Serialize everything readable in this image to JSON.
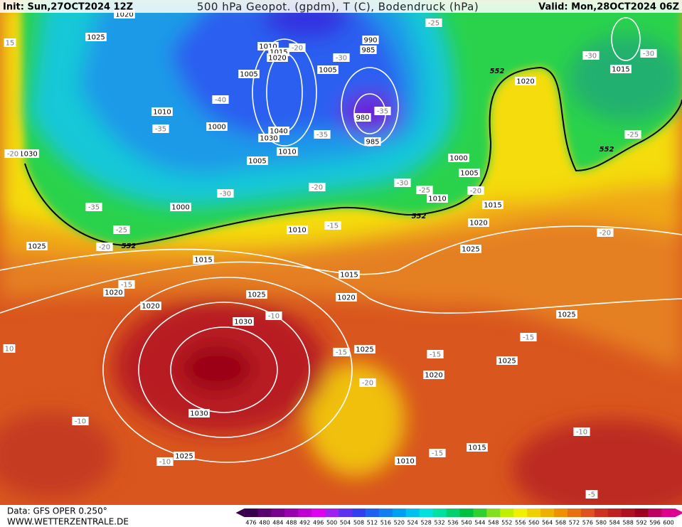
{
  "header": {
    "init": "Init: Sun,27OCT2024 12Z",
    "title": "500 hPa Geopot. (gpdm), T (C), Bodendruck (hPa)",
    "valid": "Valid: Mon,28OCT2024 06Z"
  },
  "map": {
    "isobar_labels": [
      "1020",
      "1025",
      "1010",
      "1015",
      "1020",
      "990",
      "985",
      "1005",
      "1005",
      "1010",
      "1000",
      "980",
      "1040",
      "1030",
      "985",
      "1010",
      "1005",
      "1000",
      "1005",
      "1010",
      "1015",
      "1030",
      "1000",
      "1010",
      "1020",
      "1025",
      "1025",
      "1015",
      "1015",
      "1020",
      "1025",
      "1020",
      "1020",
      "1030",
      "1025",
      "1025",
      "1025",
      "1020",
      "1030",
      "1015",
      "1025",
      "1010",
      "1015",
      "1020"
    ],
    "temperature_labels": [
      "-25",
      "-20",
      "-30",
      "-30",
      "-30",
      "-40",
      "-35",
      "-35",
      "-35",
      "-25",
      "-20",
      "-30",
      "-20",
      "-30",
      "-25",
      "-20",
      "-35",
      "-25",
      "-20",
      "-15",
      "-20",
      "-15",
      "-10",
      "-15",
      "-15",
      "-15",
      "-20",
      "-10",
      "-15",
      "-10",
      "-10",
      "-5",
      "15",
      "10"
    ],
    "geopotential_labels": [
      "552",
      "552",
      "552",
      "552"
    ]
  },
  "footer": {
    "source": "Data: GFS OPER 0.250°",
    "site": "WWW.WETTERZENTRALE.DE"
  },
  "colorbar": {
    "ticks": [
      476,
      480,
      484,
      488,
      492,
      496,
      500,
      504,
      508,
      512,
      516,
      520,
      524,
      528,
      532,
      536,
      540,
      544,
      548,
      552,
      556,
      560,
      564,
      568,
      572,
      576,
      580,
      584,
      588,
      592,
      596,
      600
    ],
    "colors": [
      "#3a0050",
      "#5a0070",
      "#7a0090",
      "#9a00b0",
      "#c000d0",
      "#e000f0",
      "#a020f0",
      "#6030f0",
      "#3040f0",
      "#2060f0",
      "#1080f0",
      "#00a0f0",
      "#00c0f0",
      "#00e0e0",
      "#00e0a0",
      "#00d070",
      "#00c040",
      "#30d030",
      "#80e020",
      "#c0f000",
      "#f0f000",
      "#f0d000",
      "#f0b000",
      "#f09000",
      "#e87010",
      "#e05020",
      "#d03020",
      "#c02020",
      "#b01020",
      "#a00020",
      "#c00060",
      "#e00090"
    ]
  }
}
